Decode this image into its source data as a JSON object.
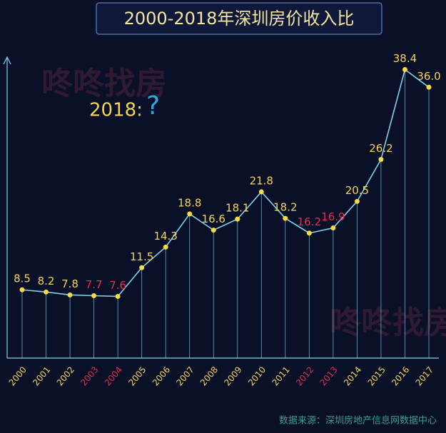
{
  "chart_data": {
    "type": "line",
    "title": "2000-2018年深圳房价收入比",
    "annotation": [
      "2018:",
      "?"
    ],
    "watermark": "咚咚找房",
    "source": "数据来源：深圳房地产信息网数据中心",
    "categories": [
      "2000",
      "2001",
      "2002",
      "2003",
      "2004",
      "2005",
      "2006",
      "2007",
      "2008",
      "2009",
      "2010",
      "2011",
      "2012",
      "2013",
      "2014",
      "2015",
      "2016",
      "2017"
    ],
    "values": [
      8.5,
      8.2,
      7.8,
      7.7,
      7.6,
      11.5,
      14.3,
      18.8,
      16.6,
      18.1,
      21.8,
      18.2,
      16.2,
      16.9,
      20.5,
      26.2,
      38.4,
      36.0
    ],
    "value_labels": [
      "8.5",
      "8.2",
      "7.8",
      "7.7",
      "7.6",
      "11.5",
      "14.3",
      "18.8",
      "16.6",
      "18.1",
      "21.8",
      "18.2",
      "16.2",
      "16.9",
      "20.5",
      "26.2",
      "38.4",
      "36.0"
    ],
    "label_colors": [
      "#f2d35a",
      "#f2d35a",
      "#f2d35a",
      "#e0304a",
      "#e0304a",
      "#f2d35a",
      "#f2d35a",
      "#f2d35a",
      "#f2d35a",
      "#f2d35a",
      "#f2d35a",
      "#f2d35a",
      "#e0304a",
      "#e0304a",
      "#f2d35a",
      "#f2d35a",
      "#f2d35a",
      "#f2d35a"
    ],
    "color": "#7fd3e8",
    "marker_color": "#f5d94a",
    "ylim": [
      0,
      40
    ]
  }
}
